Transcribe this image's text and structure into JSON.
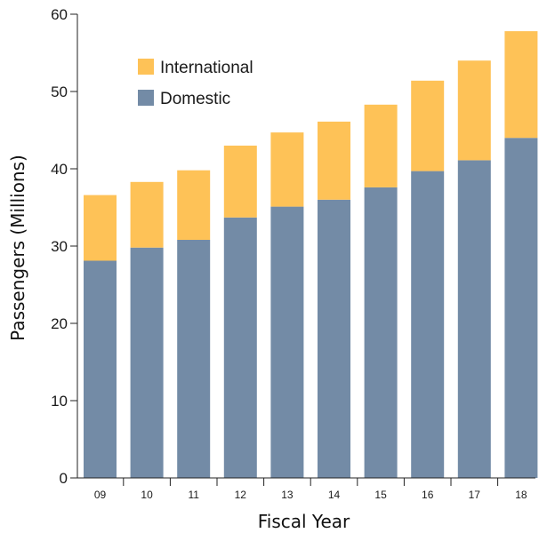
{
  "chart_data": {
    "type": "bar",
    "stacked": true,
    "categories": [
      "09",
      "10",
      "11",
      "12",
      "13",
      "14",
      "15",
      "16",
      "17",
      "18"
    ],
    "series": [
      {
        "name": "Domestic",
        "color": "#738ba6",
        "values": [
          28.1,
          29.8,
          30.8,
          33.7,
          35.1,
          36.0,
          37.6,
          39.7,
          41.1,
          44.0
        ]
      },
      {
        "name": "International",
        "color": "#fec257",
        "values": [
          8.5,
          8.5,
          9.0,
          9.3,
          9.6,
          10.1,
          10.7,
          11.7,
          12.9,
          13.8
        ]
      }
    ],
    "title": "",
    "xlabel": "Fiscal Year",
    "ylabel": "Passengers (Millions)",
    "ylim": [
      0,
      60
    ],
    "yticks": [
      0,
      10,
      20,
      30,
      40,
      50,
      60
    ],
    "grid": false,
    "legend": {
      "placement": "top-left",
      "order": [
        "International",
        "Domestic"
      ]
    }
  }
}
